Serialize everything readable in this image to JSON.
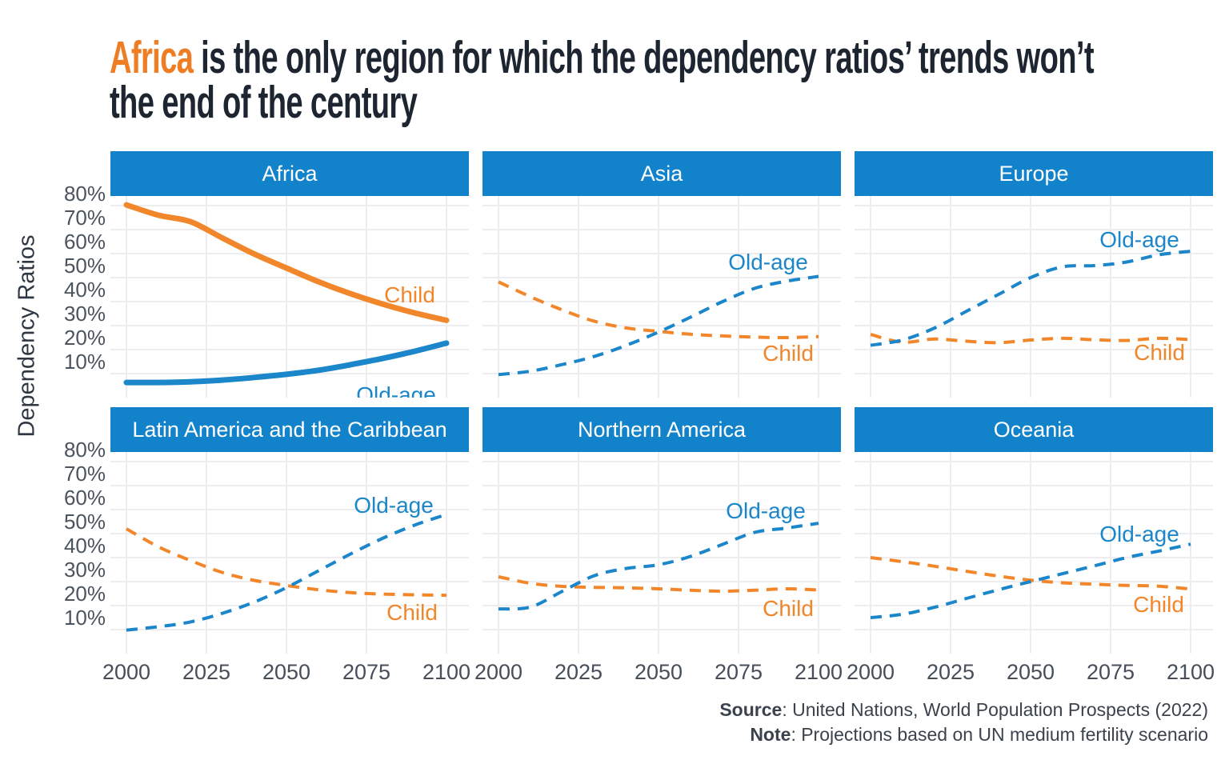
{
  "title": {
    "highlight": "Africa",
    "rest": " is the only region for which the dependency ratios’ trends won’t",
    "line2": "the end of the century"
  },
  "y_axis": {
    "title": "Dependency Ratios",
    "tick_labels": [
      "80%",
      "70%",
      "60%",
      "50%",
      "40%",
      "30%",
      "20%",
      "10%"
    ]
  },
  "x_axis": {
    "tick_labels": [
      "2000",
      "2025",
      "2050",
      "2075",
      "2100"
    ]
  },
  "footer": {
    "source_label": "Source",
    "source_text": ": United Nations, World Population Prospects (2022)",
    "note_label": "Note",
    "note_text": ": Projections based on UN medium fertility scenario"
  },
  "colors": {
    "header_bg": "#1283cb",
    "blue": "#1b86c9",
    "orange": "#f2862a",
    "title_highlight": "#ef7d23",
    "grid": "#ededf0",
    "tick_text": "#4a545e",
    "title_text": "#1d2531",
    "footer_text": "#3a434d"
  },
  "chart_data": {
    "type": "line",
    "x_years": [
      2000,
      2010,
      2020,
      2030,
      2040,
      2050,
      2060,
      2070,
      2080,
      2090,
      2100
    ],
    "x_ticks": [
      2000,
      2025,
      2050,
      2075,
      2100
    ],
    "y_ticks_pct": [
      10,
      20,
      30,
      40,
      50,
      60,
      70,
      80
    ],
    "ylim": [
      0,
      84
    ],
    "xlim": [
      1995,
      2107
    ],
    "ylabel": "Dependency Ratios",
    "grid": true,
    "legend": "direct line labels inside each facet",
    "panels": [
      {
        "title": "Africa",
        "line_style": "solid",
        "series": [
          {
            "name": "Child",
            "color_key": "orange",
            "values": [
              80.3,
              76.0,
              73.3,
              66.5,
              59.8,
              54.0,
              48.3,
              43.3,
              39.0,
              35.3,
              32.2
            ],
            "label_pos": {
              "x": 374,
              "y": 133
            }
          },
          {
            "name": "Old-age",
            "color_key": "blue",
            "values": [
              6.3,
              6.3,
              6.6,
              7.3,
              8.4,
              9.7,
              11.4,
              13.7,
              16.3,
              19.3,
              22.7
            ],
            "label_pos": {
              "x": 357,
              "y": 258
            }
          }
        ]
      },
      {
        "title": "Asia",
        "line_style": "dashed",
        "series": [
          {
            "name": "Child",
            "color_key": "orange",
            "values": [
              48.2,
              42.0,
              36.5,
              31.8,
              29.0,
              27.6,
              26.4,
              25.7,
              25.2,
              25.0,
              25.4
            ],
            "label_pos": {
              "x": 382,
              "y": 206
            }
          },
          {
            "name": "Old-age",
            "color_key": "blue",
            "values": [
              9.6,
              11.0,
              13.8,
              17.2,
              21.8,
              27.3,
              33.5,
              40.0,
              45.5,
              48.5,
              50.5
            ],
            "label_pos": {
              "x": 357,
              "y": 92
            }
          }
        ]
      },
      {
        "title": "Europe",
        "line_style": "dashed",
        "series": [
          {
            "name": "Child",
            "color_key": "orange",
            "values": [
              26.3,
              23.1,
              24.4,
              23.5,
              22.9,
              24.0,
              24.7,
              24.1,
              23.8,
              24.7,
              24.2
            ],
            "label_pos": {
              "x": 381,
              "y": 205
            }
          },
          {
            "name": "Old-age",
            "color_key": "blue",
            "values": [
              21.8,
              24.0,
              29.0,
              36.0,
              43.0,
              50.0,
              54.5,
              55.0,
              56.5,
              59.5,
              61.0
            ],
            "label_pos": {
              "x": 356,
              "y": 64
            }
          }
        ]
      },
      {
        "title": "Latin America and the Caribbean",
        "line_style": "dashed",
        "series": [
          {
            "name": "Child",
            "color_key": "orange",
            "values": [
              52.0,
              44.5,
              38.8,
              33.8,
              30.5,
              28.4,
              26.6,
              25.4,
              24.8,
              24.5,
              24.3
            ],
            "label_pos": {
              "x": 377,
              "y": 210
            }
          },
          {
            "name": "Old-age",
            "color_key": "blue",
            "values": [
              9.8,
              11.2,
              13.2,
              16.8,
              21.5,
              27.5,
              34.5,
              41.5,
              48.0,
              53.5,
              58.0
            ],
            "label_pos": {
              "x": 354,
              "y": 76
            }
          }
        ]
      },
      {
        "title": "Northern America",
        "line_style": "dashed",
        "series": [
          {
            "name": "Child",
            "color_key": "orange",
            "values": [
              32.0,
              29.3,
              28.0,
              27.6,
              27.4,
              27.0,
              26.4,
              26.0,
              26.4,
              27.0,
              26.5
            ],
            "label_pos": {
              "x": 382,
              "y": 205
            }
          },
          {
            "name": "Old-age",
            "color_key": "blue",
            "values": [
              18.6,
              19.4,
              26.0,
              32.5,
              35.5,
              37.0,
              40.5,
              45.5,
              50.5,
              52.3,
              54.3
            ],
            "label_pos": {
              "x": 354,
              "y": 83
            }
          }
        ]
      },
      {
        "title": "Oceania",
        "line_style": "dashed",
        "series": [
          {
            "name": "Child",
            "color_key": "orange",
            "values": [
              40.0,
              38.3,
              36.4,
              34.3,
              32.3,
              30.6,
              29.5,
              28.9,
              28.4,
              28.1,
              26.9
            ],
            "label_pos": {
              "x": 380,
              "y": 200
            }
          },
          {
            "name": "Old-age",
            "color_key": "blue",
            "values": [
              15.0,
              16.4,
              19.3,
              23.0,
              26.6,
              30.0,
              33.3,
              36.6,
              40.0,
              42.7,
              45.6
            ],
            "label_pos": {
              "x": 356,
              "y": 112
            }
          }
        ]
      }
    ]
  }
}
